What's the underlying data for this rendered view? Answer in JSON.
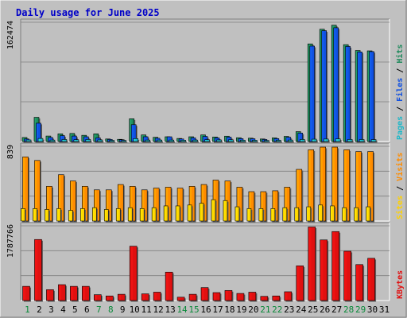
{
  "chart_data": {
    "type": "bar",
    "title": "Daily usage for June 2025",
    "days": [
      "1",
      "2",
      "3",
      "4",
      "5",
      "6",
      "7",
      "8",
      "9",
      "10",
      "11",
      "12",
      "13",
      "14",
      "15",
      "16",
      "17",
      "18",
      "19",
      "20",
      "21",
      "22",
      "23",
      "24",
      "25",
      "26",
      "27",
      "28",
      "29",
      "30",
      "31"
    ],
    "weekend_days": [
      "1",
      "7",
      "8",
      "14",
      "15",
      "21",
      "22",
      "28",
      "29"
    ],
    "panels": [
      {
        "id": "hits-files-pages",
        "max_label": "162474",
        "ymax": 162474,
        "series_labels": [
          "Pages",
          "Files",
          "Hits"
        ],
        "series": [
          {
            "name": "Hits",
            "color": "#1f8a5c",
            "values": [
              5500,
              33000,
              7500,
              10500,
              11000,
              8500,
              10500,
              3500,
              3000,
              31000,
              9000,
              5800,
              6500,
              4200,
              6500,
              9000,
              6200,
              7300,
              5200,
              4600,
              3500,
              5000,
              7000,
              13500,
              133000,
              153000,
              158500,
              132000,
              124000,
              123500,
              0
            ]
          },
          {
            "name": "Files",
            "color": "#1050e0",
            "values": [
              3500,
              25000,
              5500,
              8000,
              7500,
              6500,
              5000,
              2800,
              2500,
              23000,
              6500,
              4500,
              6500,
              3500,
              5000,
              7000,
              5000,
              6000,
              4000,
              3800,
              2800,
              4000,
              5800,
              11500,
              130000,
              151000,
              155000,
              129500,
              122000,
              122500,
              0
            ]
          },
          {
            "name": "Pages",
            "color": "#20b8c8",
            "values": [
              2200,
              4200,
              2000,
              2800,
              2500,
              2800,
              2200,
              1600,
              1500,
              4000,
              2000,
              2000,
              2000,
              1800,
              2000,
              2500,
              2200,
              2400,
              1800,
              1700,
              1500,
              1700,
              2000,
              2800,
              3200,
              3400,
              3600,
              2800,
              2700,
              2600,
              0
            ]
          }
        ]
      },
      {
        "id": "visits-sites",
        "max_label": "839",
        "ymax": 839,
        "series_labels": [
          "Sites",
          "Visits"
        ],
        "series": [
          {
            "name": "Visits",
            "color": "#ff8c00",
            "values": [
              720,
              680,
              390,
              520,
              450,
              390,
              350,
              350,
              410,
              390,
              350,
              370,
              380,
              370,
              390,
              410,
              460,
              450,
              380,
              330,
              330,
              340,
              380,
              580,
              800,
              830,
              830,
              800,
              780,
              780,
              0
            ]
          },
          {
            "name": "Sites",
            "color": "#ffd200",
            "values": [
              140,
              140,
              130,
              140,
              120,
              140,
              150,
              130,
              140,
              150,
              140,
              150,
              170,
              170,
              180,
              200,
              240,
              230,
              160,
              140,
              140,
              140,
              150,
              150,
              160,
              180,
              170,
              150,
              150,
              160,
              0
            ]
          }
        ]
      },
      {
        "id": "kbytes",
        "max_label": "1787766",
        "ymax": 1787766,
        "series_labels": [
          "KBytes"
        ],
        "series": [
          {
            "name": "KBytes",
            "color": "#e01010",
            "values": [
              340000,
              1460000,
              260000,
              380000,
              340000,
              340000,
              140000,
              110000,
              150000,
              1300000,
              160000,
              200000,
              680000,
              80000,
              150000,
              310000,
              190000,
              240000,
              170000,
              200000,
              100000,
              110000,
              210000,
              830000,
              1760000,
              1450000,
              1650000,
              1180000,
              860000,
              1010000,
              0
            ]
          }
        ]
      }
    ]
  }
}
